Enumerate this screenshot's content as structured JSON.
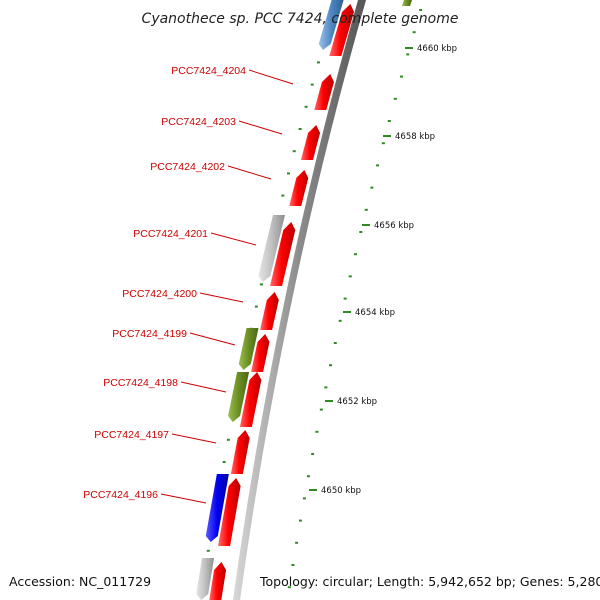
{
  "title": "Cyanothece sp. PCC 7424, complete genome",
  "footer": {
    "accession": "Accession: NC_011729",
    "topology": "Topology: circular; Length: 5,942,652 bp; Genes: 5,280"
  },
  "colors": {
    "forward_gene": "#ff0000",
    "other_gene_blue": "#0000ee",
    "other_gene_steel": "#4f87c2",
    "other_gene_olive": "#6b8e23",
    "other_gene_grey": "#c0c0c0",
    "backbone": "#999999",
    "tick": "#2e8b22",
    "label": "#cc0000"
  },
  "gene_labels": [
    {
      "name": "PCC7424_4204"
    },
    {
      "name": "PCC7424_4203"
    },
    {
      "name": "PCC7424_4202"
    },
    {
      "name": "PCC7424_4201"
    },
    {
      "name": "PCC7424_4200"
    },
    {
      "name": "PCC7424_4199"
    },
    {
      "name": "PCC7424_4198"
    },
    {
      "name": "PCC7424_4197"
    },
    {
      "name": "PCC7424_4196"
    }
  ],
  "scale_labels": [
    {
      "text": "4660 kbp"
    },
    {
      "text": "4658 kbp"
    },
    {
      "text": "4656 kbp"
    },
    {
      "text": "4654 kbp"
    },
    {
      "text": "4652 kbp"
    },
    {
      "text": "4650 kbp"
    }
  ]
}
